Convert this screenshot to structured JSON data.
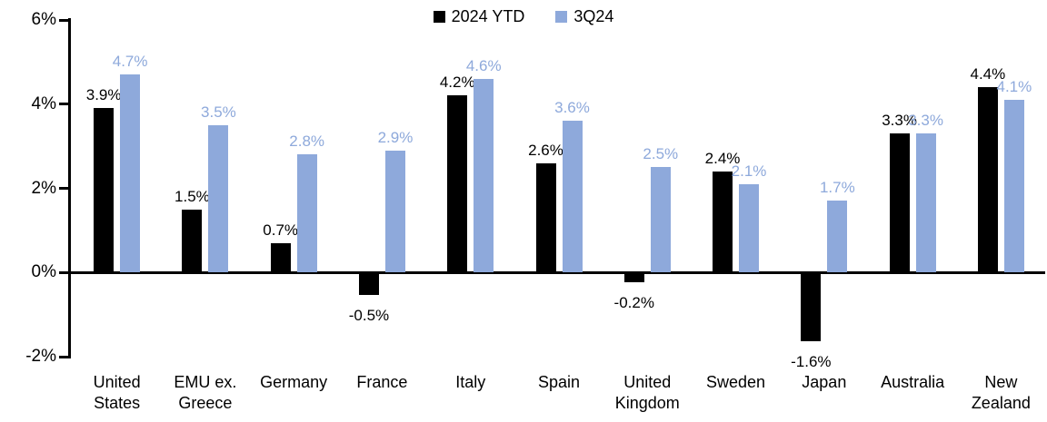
{
  "legend": {
    "items": [
      {
        "label": "2024 YTD",
        "color": "#000000"
      },
      {
        "label": "3Q24",
        "color": "#8EA9DB"
      }
    ]
  },
  "chart_data": {
    "type": "bar",
    "title": "",
    "categories": [
      "United States",
      "EMU ex. Greece",
      "Germany",
      "France",
      "Italy",
      "Spain",
      "United Kingdom",
      "Sweden",
      "Japan",
      "Australia",
      "New Zealand"
    ],
    "categories_display": [
      [
        "United",
        "States"
      ],
      [
        "EMU ex.",
        "Greece"
      ],
      [
        "Germany"
      ],
      [
        "France"
      ],
      [
        "Italy"
      ],
      [
        "Spain"
      ],
      [
        "United",
        "Kingdom"
      ],
      [
        "Sweden"
      ],
      [
        "Japan"
      ],
      [
        "Australia"
      ],
      [
        "New",
        "Zealand"
      ]
    ],
    "series": [
      {
        "name": "2024 YTD",
        "color": "#000000",
        "label_color": "#000000",
        "values": [
          3.9,
          1.5,
          0.7,
          -0.5,
          4.2,
          2.6,
          -0.2,
          2.4,
          -1.6,
          3.3,
          4.4
        ],
        "labels": [
          "3.9%",
          "1.5%",
          "0.7%",
          "-0.5%",
          "4.2%",
          "2.6%",
          "-0.2%",
          "2.4%",
          "-1.6%",
          "3.3%",
          "4.4%"
        ]
      },
      {
        "name": "3Q24",
        "color": "#8EA9DB",
        "label_color": "#8EA9DB",
        "values": [
          4.7,
          3.5,
          2.8,
          2.9,
          4.6,
          3.6,
          2.5,
          2.1,
          1.7,
          3.3,
          4.1
        ],
        "labels": [
          "4.7%",
          "3.5%",
          "2.8%",
          "2.9%",
          "4.6%",
          "3.6%",
          "2.5%",
          "2.1%",
          "1.7%",
          "3.3%",
          "4.1%"
        ]
      }
    ],
    "y_axis": {
      "tick_labels": [
        "6%",
        "4%",
        "2%",
        "0%",
        "-2%"
      ],
      "tick_values": [
        6,
        4,
        2,
        0,
        -2
      ],
      "ylim": [
        -2,
        6
      ],
      "grid": false
    },
    "legend_position": "top-center",
    "axis_color": "#000000"
  }
}
